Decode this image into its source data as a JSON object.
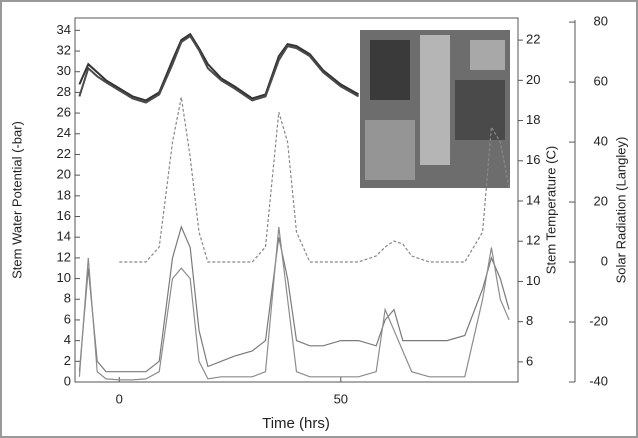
{
  "chart_data": {
    "type": "line",
    "x_label": "Time (hrs)",
    "y_label": "Stem Water Potential (-bar)",
    "y2_label": "Stem Temperature (C)",
    "y3_label": "Solar Radiation (Langley)",
    "x": [
      -9,
      -7,
      -5,
      -3,
      0,
      3,
      6,
      9,
      12,
      14,
      16,
      18,
      20,
      23,
      26,
      30,
      33,
      36,
      38,
      40,
      43,
      46,
      50,
      54,
      58,
      60,
      62,
      64,
      66,
      70,
      74,
      78,
      82,
      84,
      86,
      88
    ],
    "xlim": [
      -10,
      90
    ],
    "xticks": [
      0,
      50
    ],
    "ylim": [
      0,
      35
    ],
    "yticks": [
      0,
      2,
      4,
      6,
      8,
      10,
      12,
      14,
      16,
      18,
      20,
      22,
      24,
      26,
      28,
      30,
      32,
      34
    ],
    "y2lim": [
      5,
      23
    ],
    "y2ticks": [
      6,
      8,
      10,
      12,
      14,
      16,
      18,
      20,
      22
    ],
    "y3lim": [
      -40,
      80.7
    ],
    "y3ticks": [
      -40,
      -20,
      0,
      20,
      40,
      60,
      80
    ],
    "series": [
      {
        "color": "#7a7a7a",
        "axis": "y",
        "values": [
          1,
          11,
          2,
          1,
          1,
          1,
          1,
          2,
          12,
          15,
          13,
          5,
          1.5,
          2,
          2.5,
          3,
          4,
          14,
          10,
          4,
          3.5,
          3.5,
          4,
          4,
          3.5,
          6,
          7,
          4,
          4,
          4,
          4,
          4.5,
          9,
          12,
          10,
          7
        ]
      },
      {
        "color": "#8c8c8c",
        "axis": "y",
        "values": [
          0.5,
          12,
          1,
          0.3,
          0.2,
          0.2,
          0.3,
          1,
          10,
          11,
          10,
          2,
          0.3,
          0.5,
          0.5,
          0.5,
          1,
          15,
          8,
          1,
          0.5,
          0.5,
          0.5,
          0.5,
          1,
          7,
          5,
          3,
          1,
          0.5,
          0.5,
          0.5,
          8,
          13,
          8,
          6
        ]
      },
      {
        "color": "#333333",
        "axis": "y2",
        "values": [
          19.8,
          20.8,
          20.4,
          20.0,
          19.6,
          19.2,
          19.0,
          19.4,
          21.0,
          22.0,
          22.3,
          21.6,
          20.8,
          20.1,
          19.7,
          19.1,
          19.3,
          21.2,
          21.8,
          21.7,
          21.3,
          20.5,
          19.8,
          19.3,
          null,
          null,
          null,
          null,
          null,
          null,
          null,
          null,
          null,
          null,
          null,
          null
        ]
      },
      {
        "color": "#4a4a4a",
        "axis": "y2",
        "values": [
          19.2,
          20.6,
          20.2,
          19.9,
          19.5,
          19.1,
          18.9,
          19.3,
          20.8,
          21.9,
          22.2,
          21.5,
          20.6,
          20.0,
          19.6,
          19.0,
          19.2,
          21.0,
          21.7,
          21.6,
          21.2,
          20.4,
          19.7,
          19.2,
          null,
          null,
          null,
          null,
          null,
          null,
          null,
          null,
          null,
          null,
          null,
          null
        ]
      },
      {
        "color": "#888888",
        "axis": "y3",
        "dashed": true,
        "values": [
          null,
          null,
          null,
          null,
          0,
          0,
          0,
          5,
          40,
          55,
          35,
          10,
          0,
          0,
          0,
          0,
          5,
          50,
          40,
          10,
          0,
          0,
          0,
          0,
          2,
          5,
          7,
          6,
          2,
          0,
          0,
          0,
          10,
          45,
          40,
          25
        ]
      }
    ]
  }
}
